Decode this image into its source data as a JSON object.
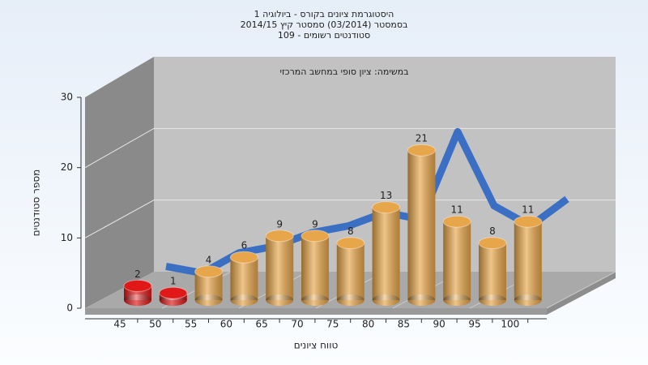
{
  "chart_data": {
    "type": "bar3d",
    "title": [
      "היסטוגרמת ציונים בקורס - ביולוגיה 1",
      "בסמסטר  (03/2014)  סמסטר קיץ 2014/15",
      "סטודנטים רשומים - 109"
    ],
    "subtitle": "במשימה: ציון סופי במחשב המרכזי",
    "x_label": "טווח ציונים",
    "y_label": "מספר סטודנטים",
    "categories": [
      "45",
      "50",
      "55",
      "60",
      "65",
      "70",
      "75",
      "80",
      "85",
      "90",
      "95",
      "100"
    ],
    "values": [
      2,
      1,
      4,
      6,
      9,
      9,
      8,
      13,
      21,
      11,
      8,
      11
    ],
    "colors": [
      "#e01818",
      "#e01818",
      "#e8a64a",
      "#e8a64a",
      "#e8a64a",
      "#e8a64a",
      "#e8a64a",
      "#e8a64a",
      "#e8a64a",
      "#e8a64a",
      "#e8a64a",
      "#e8a64a"
    ],
    "curve": {
      "color": "#3a6fc4",
      "values": [
        2,
        1,
        4,
        5,
        7,
        8,
        10,
        9,
        22,
        11,
        8,
        12
      ]
    },
    "ylim": [
      0,
      30
    ],
    "yticks": [
      0,
      10,
      20,
      30
    ],
    "grid": true
  }
}
